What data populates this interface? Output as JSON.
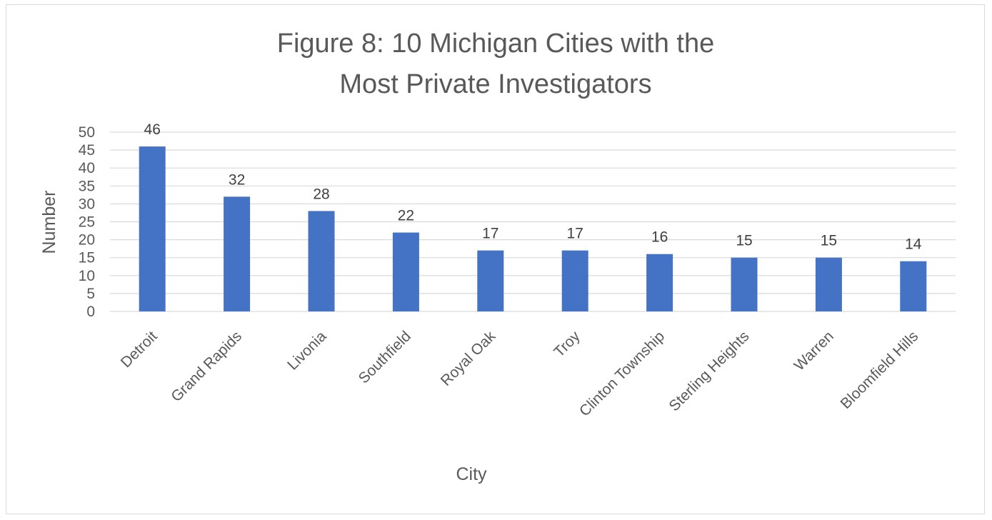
{
  "chart_data": {
    "type": "bar",
    "title_lines": [
      "Figure 8: 10 Michigan Cities with the",
      "Most Private Investigators"
    ],
    "xlabel": "City",
    "ylabel": "Number",
    "ylim": [
      0,
      50
    ],
    "ytick_step": 5,
    "yticks": [
      "0",
      "5",
      "10",
      "15",
      "20",
      "25",
      "30",
      "35",
      "40",
      "45",
      "50"
    ],
    "categories": [
      "Detroit",
      "Grand Rapids",
      "Livonia",
      "Southfield",
      "Royal Oak",
      "Troy",
      "Clinton Township",
      "Sterling Heights",
      "Warren",
      "Bloomfield Hills"
    ],
    "values": [
      46,
      32,
      28,
      22,
      17,
      17,
      16,
      15,
      15,
      14
    ],
    "data_labels": [
      "46",
      "32",
      "28",
      "22",
      "17",
      "17",
      "16",
      "15",
      "15",
      "14"
    ],
    "bar_color": "#4472c4",
    "grid": true,
    "legend": "none"
  }
}
